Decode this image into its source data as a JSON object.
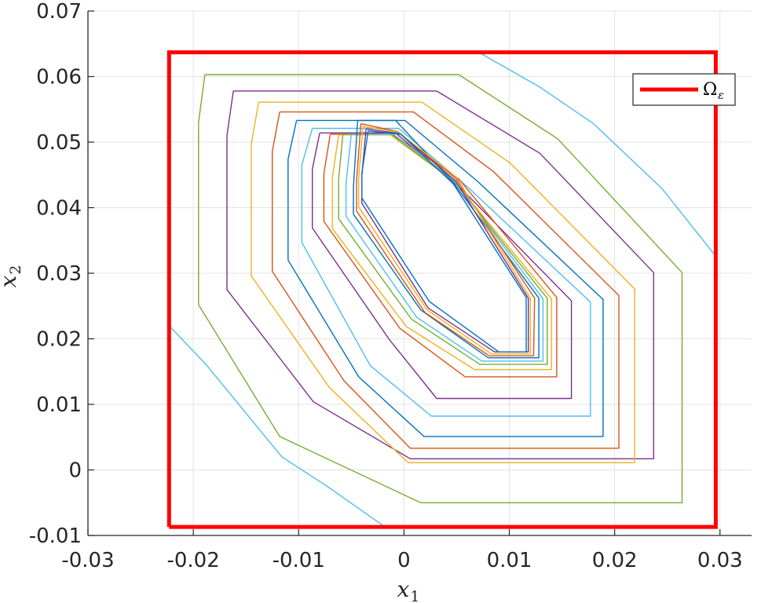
{
  "chart_data": {
    "type": "line",
    "title": "",
    "xlabel": {
      "base": "x",
      "sub": "1"
    },
    "ylabel": {
      "base": "x",
      "sub": "2"
    },
    "xlim": [
      -0.03,
      0.033
    ],
    "ylim": [
      -0.01,
      0.07
    ],
    "x_ticks": [
      -0.03,
      -0.02,
      -0.01,
      0,
      0.01,
      0.02,
      0.03
    ],
    "x_tick_labels": [
      "-0.03",
      "-0.02",
      "-0.01",
      "0",
      "0.01",
      "0.02",
      "0.03"
    ],
    "y_ticks": [
      -0.01,
      0,
      0.01,
      0.02,
      0.03,
      0.04,
      0.05,
      0.06,
      0.07
    ],
    "y_tick_labels": [
      "-0.01",
      "0",
      "0.01",
      "0.02",
      "0.03",
      "0.04",
      "0.05",
      "0.06",
      "0.07"
    ],
    "grid": true,
    "legend": {
      "position": "top-right",
      "entries": [
        {
          "base": "Ω",
          "sub": "ε",
          "color": "#ff0000"
        }
      ]
    },
    "region": {
      "color": "#ff0000",
      "points": [
        [
          -0.0223,
          -0.0087
        ],
        [
          0.0296,
          -0.0087
        ],
        [
          0.0296,
          0.0637
        ],
        [
          -0.0223,
          0.0637
        ],
        [
          -0.0223,
          -0.0087
        ]
      ]
    },
    "colors": [
      "#0072BD",
      "#D95319",
      "#EDB120",
      "#7E2F8E",
      "#77AC30",
      "#4DBEEE"
    ],
    "series": [
      {
        "color": "#4DBEEE",
        "points": [
          [
            0.0071,
            0.0637
          ],
          [
            0.0129,
            0.0584
          ],
          [
            0.018,
            0.0528
          ],
          [
            0.0245,
            0.0429
          ],
          [
            0.0296,
            0.0326
          ]
        ]
      },
      {
        "color": "#4DBEEE",
        "points": [
          [
            -0.0223,
            0.022
          ],
          [
            -0.0188,
            0.0161
          ],
          [
            -0.0116,
            0.002
          ],
          [
            -0.0072,
            -0.0026
          ],
          [
            -0.0018,
            -0.0087
          ]
        ]
      },
      {
        "color": "#77AC30",
        "points": [
          [
            -0.0189,
            0.0603
          ],
          [
            0.0052,
            0.0603
          ],
          [
            0.0146,
            0.0505
          ],
          [
            0.0264,
            0.0301
          ],
          [
            0.0264,
            -0.005
          ],
          [
            0.0016,
            -0.005
          ],
          [
            -0.0118,
            0.0051
          ],
          [
            -0.0195,
            0.0252
          ],
          [
            -0.0195,
            0.053
          ],
          [
            -0.0189,
            0.0603
          ]
        ]
      },
      {
        "color": "#7E2F8E",
        "points": [
          [
            -0.0162,
            0.0578
          ],
          [
            0.0031,
            0.0578
          ],
          [
            0.0129,
            0.0483
          ],
          [
            0.0237,
            0.0301
          ],
          [
            0.0237,
            0.0017
          ],
          [
            0.0006,
            0.0017
          ],
          [
            -0.0086,
            0.0104
          ],
          [
            -0.0168,
            0.0275
          ],
          [
            -0.0168,
            0.051
          ],
          [
            -0.0162,
            0.0578
          ]
        ]
      },
      {
        "color": "#EDB120",
        "points": [
          [
            -0.0138,
            0.0561
          ],
          [
            0.0017,
            0.0561
          ],
          [
            0.0101,
            0.0468
          ],
          [
            0.0219,
            0.0276
          ],
          [
            0.0219,
            0.0011
          ],
          [
            0.0004,
            0.0011
          ],
          [
            -0.0071,
            0.0126
          ],
          [
            -0.0145,
            0.0296
          ],
          [
            -0.0145,
            0.0496
          ],
          [
            -0.0138,
            0.0561
          ]
        ]
      },
      {
        "color": "#D95319",
        "points": [
          [
            -0.0118,
            0.0546
          ],
          [
            0.0009,
            0.0546
          ],
          [
            0.0085,
            0.0455
          ],
          [
            0.0204,
            0.0266
          ],
          [
            0.0204,
            0.0033
          ],
          [
            0.0006,
            0.0033
          ],
          [
            -0.0057,
            0.0136
          ],
          [
            -0.0125,
            0.0303
          ],
          [
            -0.0125,
            0.0486
          ],
          [
            -0.0118,
            0.0546
          ]
        ]
      },
      {
        "color": "#0072BD",
        "points": [
          [
            -0.0102,
            0.0533
          ],
          [
            0.0001,
            0.0533
          ],
          [
            0.007,
            0.044
          ],
          [
            0.0189,
            0.026
          ],
          [
            0.0189,
            0.0051
          ],
          [
            0.0019,
            0.0051
          ],
          [
            -0.0043,
            0.0142
          ],
          [
            -0.011,
            0.032
          ],
          [
            -0.011,
            0.0474
          ],
          [
            -0.0102,
            0.0533
          ]
        ]
      },
      {
        "color": "#4DBEEE",
        "points": [
          [
            -0.0087,
            0.0521
          ],
          [
            -0.0005,
            0.0521
          ],
          [
            0.006,
            0.0432
          ],
          [
            0.0177,
            0.0256
          ],
          [
            0.0177,
            0.0082
          ],
          [
            0.0026,
            0.0082
          ],
          [
            -0.0032,
            0.0159
          ],
          [
            -0.0097,
            0.0347
          ],
          [
            -0.0097,
            0.0465
          ],
          [
            -0.0087,
            0.0521
          ]
        ]
      },
      {
        "color": "#7E2F8E",
        "points": [
          [
            -0.008,
            0.0514
          ],
          [
            -0.0008,
            0.0514
          ],
          [
            0.0055,
            0.0428
          ],
          [
            0.0159,
            0.0258
          ],
          [
            0.0159,
            0.0109
          ],
          [
            0.0031,
            0.0109
          ],
          [
            -0.0014,
            0.0199
          ],
          [
            -0.0087,
            0.0369
          ],
          [
            -0.0087,
            0.0459
          ],
          [
            -0.008,
            0.0514
          ]
        ]
      },
      {
        "color": "#D95319",
        "points": [
          [
            -0.007,
            0.0512
          ],
          [
            -0.0011,
            0.0512
          ],
          [
            0.0052,
            0.0444
          ],
          [
            0.0145,
            0.0263
          ],
          [
            0.0145,
            0.0142
          ],
          [
            0.0058,
            0.0142
          ],
          [
            -0.0004,
            0.0216
          ],
          [
            -0.0076,
            0.0379
          ],
          [
            -0.0076,
            0.0452
          ],
          [
            -0.007,
            0.0512
          ]
        ]
      },
      {
        "color": "#EDB120",
        "points": [
          [
            -0.0062,
            0.0511
          ],
          [
            -0.0013,
            0.0511
          ],
          [
            0.0049,
            0.0438
          ],
          [
            0.014,
            0.0261
          ],
          [
            0.014,
            0.0153
          ],
          [
            0.0067,
            0.0153
          ],
          [
            0.0002,
            0.0219
          ],
          [
            -0.0068,
            0.0368
          ],
          [
            -0.0068,
            0.0446
          ],
          [
            -0.0062,
            0.0511
          ]
        ]
      },
      {
        "color": "#77AC30",
        "points": [
          [
            -0.0058,
            0.0512
          ],
          [
            -0.0012,
            0.0512
          ],
          [
            0.0047,
            0.0441
          ],
          [
            0.0136,
            0.0262
          ],
          [
            0.0136,
            0.0161
          ],
          [
            0.0072,
            0.0161
          ],
          [
            0.0007,
            0.023
          ],
          [
            -0.0062,
            0.0383
          ],
          [
            -0.0062,
            0.0443
          ],
          [
            -0.0058,
            0.0512
          ]
        ]
      },
      {
        "color": "#4DBEEE",
        "points": [
          [
            -0.005,
            0.0512
          ],
          [
            -0.001,
            0.0512
          ],
          [
            0.0047,
            0.0443
          ],
          [
            0.0132,
            0.0261
          ],
          [
            0.0132,
            0.0166
          ],
          [
            0.0074,
            0.0166
          ],
          [
            0.0012,
            0.0233
          ],
          [
            -0.0055,
            0.0387
          ],
          [
            -0.0055,
            0.0437
          ],
          [
            -0.005,
            0.0512
          ]
        ]
      },
      {
        "color": "#0072BD",
        "points": [
          [
            -0.0044,
            0.0533
          ],
          [
            -0.0008,
            0.0533
          ],
          [
            0.0046,
            0.044
          ],
          [
            0.0128,
            0.0262
          ],
          [
            0.0128,
            0.0171
          ],
          [
            0.008,
            0.0171
          ],
          [
            0.0016,
            0.0244
          ],
          [
            -0.0048,
            0.039
          ],
          [
            -0.0048,
            0.0431
          ],
          [
            -0.0044,
            0.0533
          ]
        ]
      },
      {
        "color": "#D95319",
        "points": [
          [
            -0.0041,
            0.0528
          ],
          [
            -0.0006,
            0.0516
          ],
          [
            0.0049,
            0.0445
          ],
          [
            0.0124,
            0.0262
          ],
          [
            0.0123,
            0.0174
          ],
          [
            0.0081,
            0.0174
          ],
          [
            0.002,
            0.024
          ],
          [
            -0.0045,
            0.0395
          ],
          [
            -0.0045,
            0.044
          ],
          [
            -0.0041,
            0.0528
          ]
        ]
      },
      {
        "color": "#EDB120",
        "points": [
          [
            -0.0039,
            0.0524
          ],
          [
            -0.0005,
            0.0515
          ],
          [
            0.005,
            0.0446
          ],
          [
            0.012,
            0.0262
          ],
          [
            0.012,
            0.0177
          ],
          [
            0.0083,
            0.0177
          ],
          [
            0.0022,
            0.0244
          ],
          [
            -0.0043,
            0.0401
          ],
          [
            -0.0043,
            0.0445
          ],
          [
            -0.0039,
            0.0524
          ]
        ]
      },
      {
        "color": "#7E2F8E",
        "points": [
          [
            -0.0036,
            0.052
          ],
          [
            -0.0004,
            0.0513
          ],
          [
            0.0049,
            0.0441
          ],
          [
            0.0118,
            0.0262
          ],
          [
            0.0118,
            0.018
          ],
          [
            0.0086,
            0.018
          ],
          [
            0.0023,
            0.0247
          ],
          [
            -0.004,
            0.0407
          ],
          [
            -0.004,
            0.0448
          ],
          [
            -0.0036,
            0.052
          ]
        ]
      },
      {
        "color": "#0072BD",
        "points": [
          [
            -0.0034,
            0.0517
          ],
          [
            -0.0003,
            0.0512
          ],
          [
            0.0047,
            0.0436
          ],
          [
            0.0116,
            0.0263
          ],
          [
            0.0116,
            0.018
          ],
          [
            0.009,
            0.018
          ],
          [
            0.0024,
            0.0257
          ],
          [
            -0.004,
            0.0415
          ],
          [
            -0.004,
            0.0452
          ],
          [
            -0.0034,
            0.0517
          ]
        ]
      }
    ]
  }
}
